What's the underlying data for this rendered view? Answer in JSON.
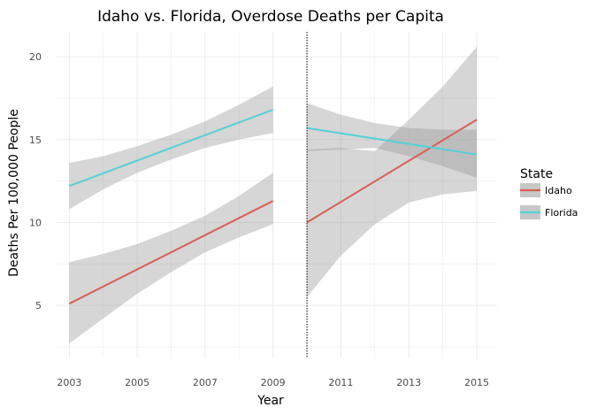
{
  "chart_data": {
    "type": "line",
    "title": "Idaho vs. Florida, Overdose Deaths per Capita",
    "xlabel": "Year",
    "ylabel": "Deaths Per 100,000 People",
    "xlim": [
      2002.6,
      2015.6
    ],
    "ylim": [
      1.8,
      21.5
    ],
    "x_ticks": [
      2003,
      2005,
      2007,
      2009,
      2011,
      2013,
      2015
    ],
    "y_ticks": [
      5,
      10,
      15,
      20
    ],
    "grid": true,
    "cutoff_x": 2010,
    "legend": {
      "title": "State",
      "placement": "right",
      "entries": [
        {
          "name": "Idaho",
          "color": "#d95f52"
        },
        {
          "name": "Florida",
          "color": "#55d0d8"
        }
      ]
    },
    "series": [
      {
        "name": "Idaho",
        "color": "#d95f52",
        "segment": "pre",
        "x": [
          2003,
          2009
        ],
        "y": [
          5.1,
          11.3
        ],
        "band_x": [
          2003,
          2004,
          2005,
          2006,
          2007,
          2008,
          2009
        ],
        "band_low": [
          2.7,
          4.2,
          5.7,
          7.0,
          8.2,
          9.1,
          9.9
        ],
        "band_high": [
          7.6,
          8.1,
          8.7,
          9.5,
          10.4,
          11.6,
          13.0
        ]
      },
      {
        "name": "Florida",
        "color": "#55d0d8",
        "segment": "pre",
        "x": [
          2003,
          2009
        ],
        "y": [
          12.2,
          16.8
        ],
        "band_x": [
          2003,
          2004,
          2005,
          2006,
          2007,
          2008,
          2009
        ],
        "band_low": [
          10.8,
          12.0,
          13.0,
          13.8,
          14.5,
          15.0,
          15.4
        ],
        "band_high": [
          13.6,
          14.0,
          14.6,
          15.3,
          16.1,
          17.1,
          18.2
        ]
      },
      {
        "name": "Idaho",
        "color": "#d95f52",
        "segment": "post",
        "x": [
          2010,
          2015
        ],
        "y": [
          10.0,
          16.2
        ],
        "band_x": [
          2010,
          2011,
          2012,
          2013,
          2014,
          2015
        ],
        "band_low": [
          5.5,
          8.0,
          9.9,
          11.2,
          11.7,
          11.9
        ],
        "band_high": [
          14.4,
          14.5,
          14.3,
          16.2,
          18.2,
          20.6
        ]
      },
      {
        "name": "Florida",
        "color": "#55d0d8",
        "segment": "post",
        "x": [
          2010,
          2015
        ],
        "y": [
          15.7,
          14.1
        ],
        "band_x": [
          2010,
          2011,
          2012,
          2013,
          2014,
          2015
        ],
        "band_low": [
          14.3,
          14.4,
          14.5,
          14.0,
          13.4,
          12.7
        ],
        "band_high": [
          17.2,
          16.5,
          16.0,
          15.7,
          15.6,
          15.6
        ]
      }
    ]
  }
}
